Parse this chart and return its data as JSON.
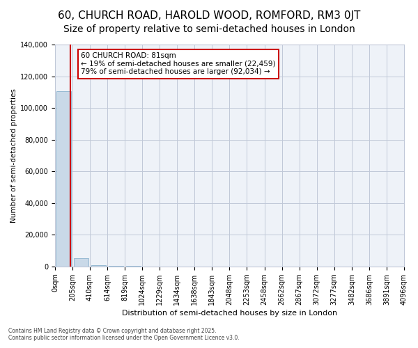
{
  "title": "60, CHURCH ROAD, HAROLD WOOD, ROMFORD, RM3 0JT",
  "subtitle": "Size of property relative to semi-detached houses in London",
  "xlabel": "Distribution of semi-detached houses by size in London",
  "ylabel": "Number of semi-detached properties",
  "annotation_line1": "60 CHURCH ROAD: 81sqm",
  "annotation_line2": "← 19% of semi-detached houses are smaller (22,459)",
  "annotation_line3": "79% of semi-detached houses are larger (92,034) →",
  "footer_line1": "Contains HM Land Registry data © Crown copyright and database right 2025.",
  "footer_line2": "Contains public sector information licensed under the Open Government Licence v3.0.",
  "bin_labels": [
    "0sqm",
    "205sqm",
    "410sqm",
    "614sqm",
    "819sqm",
    "1024sqm",
    "1229sqm",
    "1434sqm",
    "1638sqm",
    "1843sqm",
    "2048sqm",
    "2253sqm",
    "2458sqm",
    "2662sqm",
    "2867sqm",
    "3072sqm",
    "3277sqm",
    "3482sqm",
    "3686sqm",
    "3891sqm",
    "4096sqm"
  ],
  "bar_values": [
    110500,
    5200,
    800,
    200,
    100,
    50,
    30,
    20,
    15,
    10,
    8,
    6,
    5,
    4,
    3,
    3,
    2,
    2,
    1,
    1
  ],
  "bar_color": "#c9d9e8",
  "bar_edge_color": "#7aa8c8",
  "red_line_x": 0.395,
  "ylim": [
    0,
    140000
  ],
  "yticks": [
    0,
    20000,
    40000,
    60000,
    80000,
    100000,
    120000,
    140000
  ],
  "grid_color": "#c0c8d8",
  "bg_color": "#eef2f8",
  "title_fontsize": 11,
  "subtitle_fontsize": 10,
  "tick_fontsize": 7,
  "annotation_border_color": "#cc0000",
  "red_line_color": "#cc0000"
}
